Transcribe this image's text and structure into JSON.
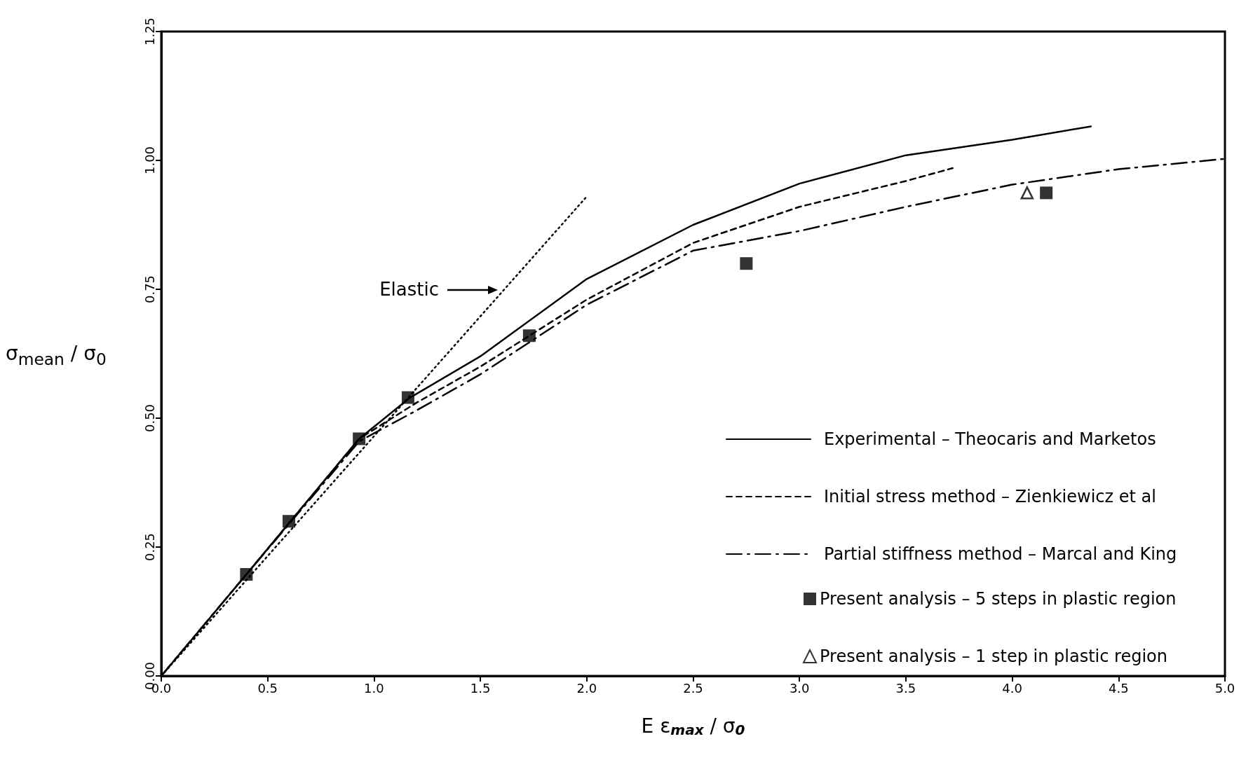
{
  "chart_data": {
    "type": "line",
    "xlabel": "E ε$_{max}$ / σ$_{0}$",
    "ylabel": "σ$_{mean}$ / σ$_{0}$",
    "xlim": [
      0,
      5
    ],
    "ylim": [
      0,
      1.25
    ],
    "xticks": [
      {
        "value": 0,
        "label": "0.0"
      },
      {
        "value": 0.5,
        "label": "0.5"
      },
      {
        "value": 1,
        "label": "1.0"
      },
      {
        "value": 1.5,
        "label": "1.5"
      },
      {
        "value": 2,
        "label": "2.0"
      },
      {
        "value": 2.5,
        "label": "2.5"
      },
      {
        "value": 3,
        "label": "3.0"
      },
      {
        "value": 3.5,
        "label": "3.5"
      },
      {
        "value": 4,
        "label": "4.0"
      },
      {
        "value": 4.5,
        "label": "4.5"
      },
      {
        "value": 5,
        "label": "5.0"
      }
    ],
    "yticks": [
      {
        "value": 0,
        "label": "0.00"
      },
      {
        "value": 0.25,
        "label": "0.25"
      },
      {
        "value": 0.5,
        "label": "0.50"
      },
      {
        "value": 0.75,
        "label": "0.75"
      },
      {
        "value": 1,
        "label": "1.00"
      },
      {
        "value": 1.25,
        "label": "1.25"
      }
    ],
    "grid": false,
    "legend": "bottom right",
    "annotations": [
      "Elastic"
    ],
    "series": [
      {
        "color": "#000000",
        "line_style": "dotted",
        "marker": "none",
        "x": [
          0,
          2.0
        ],
        "values": [
          0,
          0.93
        ]
      },
      {
        "name": "Experimental – Theocaris and Marketos",
        "color": "#000000",
        "line_style": "solid",
        "marker": "none",
        "x": [
          0,
          0.4,
          0.93,
          1.17,
          1.5,
          2.0,
          2.5,
          3.0,
          3.5,
          4.0,
          4.37
        ],
        "values": [
          0,
          0.197,
          0.46,
          0.54,
          0.62,
          0.77,
          0.875,
          0.955,
          1.01,
          1.04,
          1.066
        ]
      },
      {
        "name": "Initial stress method – Zienkiewicz et al",
        "color": "#000000",
        "line_style": "dashed",
        "marker": "none",
        "x": [
          0,
          0.4,
          0.93,
          1.2,
          1.5,
          2.0,
          2.5,
          3.0,
          3.5,
          3.72
        ],
        "values": [
          0,
          0.197,
          0.46,
          0.53,
          0.6,
          0.73,
          0.84,
          0.91,
          0.96,
          0.985
        ]
      },
      {
        "name": "Partial stiffness method – Marcal and King",
        "color": "#000000",
        "line_style": "dashdot",
        "marker": "none",
        "x": [
          0,
          0.4,
          0.93,
          1.2,
          1.5,
          2.0,
          2.5,
          3.0,
          3.5,
          4.0,
          4.5,
          5.0
        ],
        "values": [
          0,
          0.197,
          0.455,
          0.515,
          0.585,
          0.72,
          0.825,
          0.863,
          0.91,
          0.953,
          0.983,
          1.003
        ]
      },
      {
        "type": "scatter",
        "name": "Present analysis – 5 steps in plastic region",
        "color": "#000000",
        "marker": "square",
        "x": [
          0.4,
          0.6,
          0.93,
          1.16,
          1.73,
          2.75,
          4.16
        ],
        "values": [
          0.197,
          0.3,
          0.46,
          0.54,
          0.66,
          0.8,
          0.937
        ]
      },
      {
        "type": "scatter",
        "name": "Present analysis – 1 step in plastic region",
        "color": "#000000",
        "marker": "triangle",
        "x": [
          4.07
        ],
        "values": [
          0.937
        ]
      }
    ]
  }
}
